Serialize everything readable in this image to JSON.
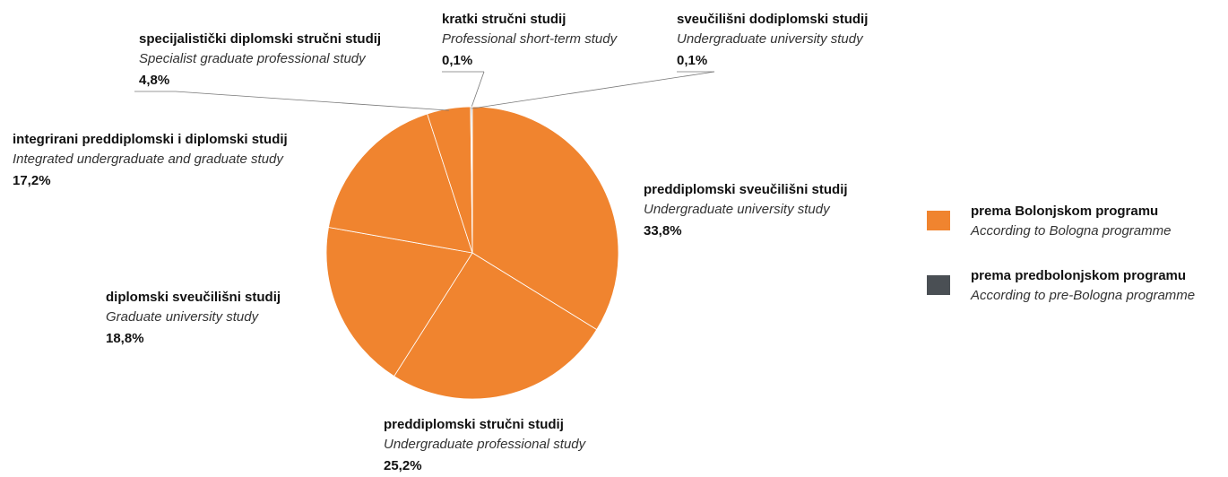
{
  "chart_data": {
    "type": "pie",
    "categories": [
      "preddiplomski sveučilišni studij",
      "preddiplomski stručni studij",
      "diplomski sveučilišni studij",
      "integrirani preddiplomski i diplomski studij",
      "specijalistički diplomski stručni studij",
      "kratki stručni studij",
      "sveučilišni dodiplomski studij"
    ],
    "subtitles": [
      "Undergraduate university study",
      "Undergraduate professional study",
      "Graduate university study",
      "Integrated undergraduate and graduate study",
      "Specialist graduate professional study",
      "Professional short-term study",
      "Undergraduate university study"
    ],
    "values": [
      33.8,
      25.2,
      18.8,
      17.2,
      4.8,
      0.1,
      0.1
    ],
    "value_labels": [
      "33,8%",
      "25,2%",
      "18,8%",
      "17,2%",
      "4,8%",
      "0,1%",
      "0,1%"
    ],
    "colors": [
      "#f0842f",
      "#f0842f",
      "#f0842f",
      "#f0842f",
      "#f0842f",
      "#4a4f54",
      "#4a4f54"
    ],
    "legend": [
      {
        "name": "prema Bolonjskom programu",
        "subname": "According to Bologna programme",
        "color": "#f0842f"
      },
      {
        "name": "prema predbolonjskom programu",
        "subname": "According to pre-Bologna programme",
        "color": "#4a4f54"
      }
    ]
  }
}
